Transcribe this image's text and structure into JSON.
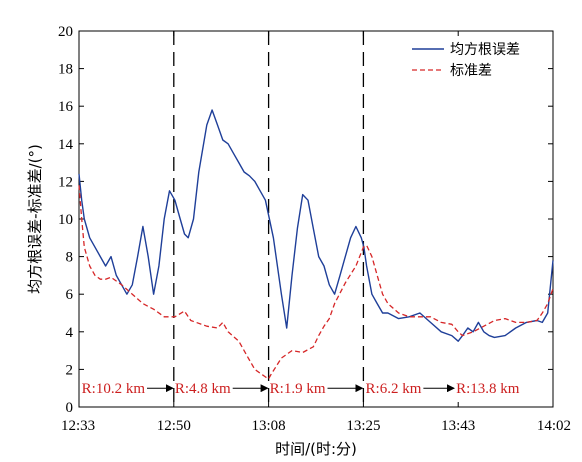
{
  "chart_data": {
    "type": "line",
    "xlabel": "时间/(时:分)",
    "ylabel": "均方根误差-标准差/(°)",
    "x_ticks": [
      "12:33",
      "12:50",
      "13:08",
      "13:25",
      "13:43",
      "14:02"
    ],
    "x_tick_minutes": [
      0,
      17.8,
      35.6,
      53.4,
      71.2,
      89
    ],
    "xlim": [
      0,
      89
    ],
    "ylim": [
      0,
      20
    ],
    "y_ticks": [
      0,
      2,
      4,
      6,
      8,
      10,
      12,
      14,
      16,
      18,
      20
    ],
    "legend": {
      "position": "top-right"
    },
    "series": [
      {
        "name": "均方根误差",
        "color": "#1f3f99",
        "style": "solid",
        "x": [
          0,
          0.5,
          1,
          2,
          3,
          4,
          5,
          6,
          7,
          8,
          9,
          10,
          11,
          12,
          13,
          14,
          15,
          16,
          17,
          18,
          19,
          19.8,
          20.5,
          21.5,
          22.5,
          24,
          25,
          26,
          27,
          28,
          29,
          30,
          31,
          32,
          33,
          34,
          35,
          35.6,
          36.5,
          38,
          39,
          40,
          41,
          42,
          43,
          44,
          45,
          46,
          47,
          48,
          49,
          50,
          51,
          52,
          53,
          53.5,
          54,
          55,
          56,
          57,
          58,
          60,
          62,
          64,
          66,
          68,
          70,
          71.2,
          72,
          73,
          74,
          75,
          76,
          77,
          78,
          80,
          82,
          84,
          86,
          87,
          88,
          89
        ],
        "y": [
          12.4,
          11.0,
          10.0,
          9.0,
          8.5,
          8.0,
          7.5,
          8.0,
          7.0,
          6.5,
          6.0,
          6.5,
          8.0,
          9.6,
          8.0,
          6.0,
          7.5,
          10.0,
          11.5,
          11.0,
          10.0,
          9.2,
          9.0,
          10.0,
          12.5,
          15.0,
          15.8,
          15.0,
          14.2,
          14.0,
          13.5,
          13.0,
          12.5,
          12.3,
          12.0,
          11.5,
          11.0,
          10.2,
          9.0,
          6.0,
          4.2,
          7.0,
          9.5,
          11.3,
          11.0,
          9.5,
          8.0,
          7.5,
          6.5,
          6.0,
          7.0,
          8.0,
          9.0,
          9.6,
          9.0,
          8.5,
          7.5,
          6.0,
          5.5,
          5.0,
          5.0,
          4.7,
          4.8,
          5.0,
          4.5,
          4.0,
          3.8,
          3.5,
          3.8,
          4.2,
          4.0,
          4.5,
          4.0,
          3.8,
          3.7,
          3.8,
          4.2,
          4.5,
          4.6,
          4.5,
          5.0,
          7.8
        ]
      },
      {
        "name": "标准差",
        "color": "#d62728",
        "style": "dashed",
        "x": [
          0,
          0.5,
          1,
          2,
          3,
          4,
          5,
          6,
          8,
          10,
          12,
          14,
          16,
          18,
          19.8,
          21,
          22,
          24,
          26,
          27,
          28,
          30,
          32,
          33,
          34,
          35,
          35.6,
          36,
          38,
          40,
          42,
          44,
          45,
          46,
          47,
          48,
          50,
          52,
          53.4,
          54,
          55,
          56,
          57,
          58,
          60,
          62,
          64,
          66,
          68,
          70,
          71.2,
          72,
          74,
          76,
          78,
          80,
          82,
          84,
          86,
          87,
          88,
          89
        ],
        "y": [
          11.8,
          10.0,
          8.5,
          7.5,
          7.0,
          6.8,
          6.8,
          6.9,
          6.5,
          6.0,
          5.5,
          5.2,
          4.8,
          4.8,
          5.1,
          4.6,
          4.5,
          4.3,
          4.2,
          4.5,
          4.0,
          3.5,
          2.5,
          2.0,
          1.8,
          1.6,
          1.5,
          1.7,
          2.6,
          3.0,
          2.9,
          3.2,
          3.8,
          4.3,
          4.7,
          5.5,
          6.6,
          7.5,
          8.5,
          8.6,
          8.0,
          7.0,
          6.0,
          5.5,
          5.0,
          4.8,
          4.8,
          4.8,
          4.5,
          4.4,
          4.0,
          3.8,
          4.0,
          4.3,
          4.6,
          4.7,
          4.5,
          4.5,
          4.6,
          5.0,
          5.5,
          6.3
        ]
      }
    ],
    "vlines_minutes": [
      17.8,
      35.6,
      53.4
    ],
    "annotations": [
      {
        "text": "R:10.2 km",
        "x_minutes": 0.5,
        "arrow_to_minutes": 17.8
      },
      {
        "text": "R:4.8 km",
        "x_minutes": 18.0,
        "arrow_to_minutes": 35.6
      },
      {
        "text": "R:1.9 km",
        "x_minutes": 35.8,
        "arrow_to_minutes": 53.4
      },
      {
        "text": "R:6.2 km",
        "x_minutes": 53.8,
        "arrow_to_minutes": 70.6
      },
      {
        "text": "R:13.8 km",
        "x_minutes": 70.8,
        "arrow_to_minutes": null
      }
    ],
    "annotation_y_value": 1.0
  }
}
